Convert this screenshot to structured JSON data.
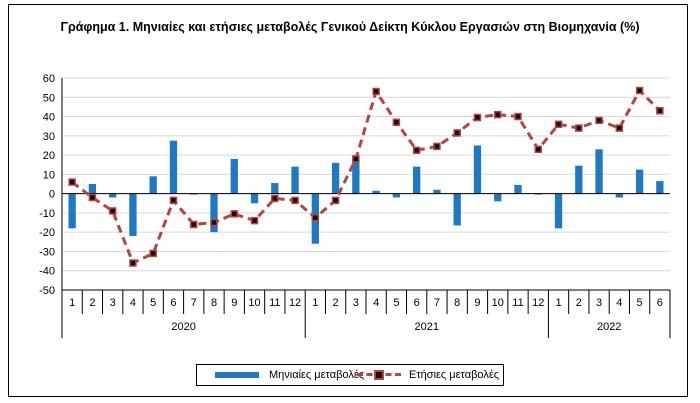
{
  "title": "Γράφημα 1. Μηνιαίες και ετήσιες μεταβολές  Γενικού Δείκτη Κύκλου Εργασιών στη Βιομηχανία (%)",
  "legend": {
    "monthly": "Μηνιαίες μεταβολές",
    "annual": "Ετήσιες μεταβολές"
  },
  "colors": {
    "bar": "#1f78c4",
    "line": "#b5453e",
    "marker_fill": "#111111",
    "grid": "#d9d9d9"
  },
  "chart_data": {
    "type": "bar+line",
    "title": "Γράφημα 1. Μηνιαίες και ετήσιες μεταβολές  Γενικού Δείκτη Κύκλου Εργασιών στη Βιομηχανία (%)",
    "xlabel": "",
    "ylabel": "",
    "ylim": [
      -50,
      60
    ],
    "yticks": [
      60,
      50,
      40,
      30,
      20,
      10,
      0,
      -10,
      -20,
      -30,
      -40,
      -50
    ],
    "grid": true,
    "legend_position": "bottom",
    "groups": [
      {
        "label": "2020",
        "months": [
          "1",
          "2",
          "3",
          "4",
          "5",
          "6",
          "7",
          "8",
          "9",
          "10",
          "11",
          "12"
        ]
      },
      {
        "label": "2021",
        "months": [
          "1",
          "2",
          "3",
          "4",
          "5",
          "6",
          "7",
          "8",
          "9",
          "10",
          "11",
          "12"
        ]
      },
      {
        "label": "2022",
        "months": [
          "1",
          "2",
          "3",
          "4",
          "5",
          "6"
        ]
      }
    ],
    "series": [
      {
        "name": "Μηνιαίες μεταβολές",
        "type": "bar",
        "values": [
          -18,
          5,
          -2,
          -22,
          9,
          27.5,
          -0.5,
          -20,
          18,
          -5,
          5.5,
          14,
          -26,
          16,
          19,
          1.5,
          -2,
          14,
          2,
          -16.5,
          25,
          -4,
          4.5,
          -0.5,
          -18,
          14.5,
          23,
          -2,
          12.5,
          6.5
        ]
      },
      {
        "name": "Ετήσιες μεταβολές",
        "type": "line",
        "values": [
          6,
          -2,
          -9,
          -36,
          -31,
          -3.5,
          -16,
          -15,
          -10.5,
          -14,
          -2.5,
          -3.5,
          -12.5,
          -3.5,
          18,
          53,
          37,
          22.5,
          24.5,
          31.5,
          39.5,
          41,
          40,
          23,
          36,
          34,
          38,
          34,
          53.5,
          43
        ]
      }
    ]
  }
}
